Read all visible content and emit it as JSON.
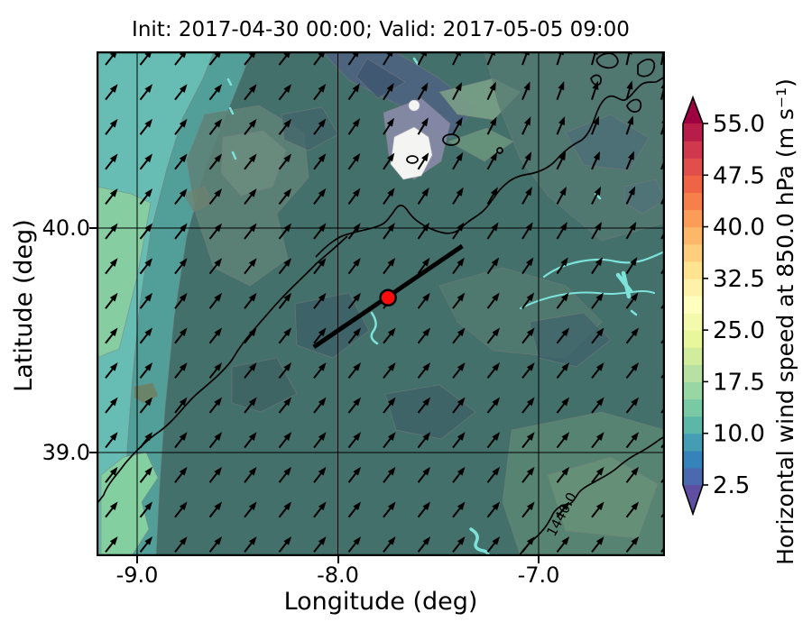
{
  "figure": {
    "title": "Init: 2017-04-30 00:00; Valid: 2017-05-05 09:00",
    "xlabel": "Longitude (deg)",
    "ylabel": "Latitude (deg)"
  },
  "chart_data": {
    "type": "heatmap",
    "subtype": "meteorological map: filled wind-speed contours + quiver arrows + geopotential height contours",
    "title": "Init: 2017-04-30 00:00; Valid: 2017-05-05 09:00",
    "xlabel": "Longitude (deg)",
    "ylabel": "Latitude (deg)",
    "xlim": [
      -9.2,
      -6.37
    ],
    "ylim": [
      38.54,
      40.79
    ],
    "x_ticks": [
      {
        "value": -9.0,
        "label": "-9.0"
      },
      {
        "value": -8.0,
        "label": "-8.0"
      },
      {
        "value": -7.0,
        "label": "-7.0"
      }
    ],
    "y_ticks": [
      {
        "value": 40.0,
        "label": "40.0"
      },
      {
        "value": 39.0,
        "label": "39.0"
      }
    ],
    "grid": true,
    "colorbar": {
      "label": "Horizontal wind speed at 850.0 hPa (m s⁻¹)",
      "units": "m s-1",
      "levels_min": 2.5,
      "levels_max": 55.0,
      "level_step": 2.5,
      "extend": "both",
      "ticks": [
        {
          "value": 55.0,
          "label": "55.0"
        },
        {
          "value": 47.5,
          "label": "47.5"
        },
        {
          "value": 40.0,
          "label": "40.0"
        },
        {
          "value": 32.5,
          "label": "32.5"
        },
        {
          "value": 25.0,
          "label": "25.0"
        },
        {
          "value": 17.5,
          "label": "17.5"
        },
        {
          "value": 10.0,
          "label": "10.0"
        },
        {
          "value": 2.5,
          "label": "2.5"
        }
      ],
      "colormap": "Spectral_r",
      "colormap_anchors_low_to_high": [
        "#5e4fa2",
        "#3288bd",
        "#66c2a5",
        "#abdda4",
        "#e6f598",
        "#ffffbf",
        "#fee08b",
        "#fdae61",
        "#f46d43",
        "#d53e4f",
        "#9e0142"
      ]
    },
    "wind_field_regions": [
      {
        "area": "Atlantic / west coastal strip (west of about -8.9)",
        "wind_speed_ms": "12.5 to 17.5"
      },
      {
        "area": "inland Portugal / Spain (most of the map)",
        "wind_speed_ms": "5 to 10"
      },
      {
        "area": "Serra da Estrela high ground near (-7.6, 40.35)",
        "wind_speed_ms": "about 25 (white patch)"
      },
      {
        "area": "northeast quadrant",
        "wind_speed_ms": "7.5 to 12.5"
      }
    ],
    "quiver": {
      "description": "regular grid of black arrows pointing north-northeast to northeast (southwesterly flow), turning more northward toward the northeast corner"
    },
    "contour_label": "1440.0",
    "marker": {
      "lon": -7.75,
      "lat": 39.69,
      "style": "red filled circle with black edge"
    },
    "cross_section_line": {
      "lon1": -8.12,
      "lat1": 39.47,
      "lon2": -7.38,
      "lat2": 39.92,
      "style": "thick black line"
    }
  }
}
